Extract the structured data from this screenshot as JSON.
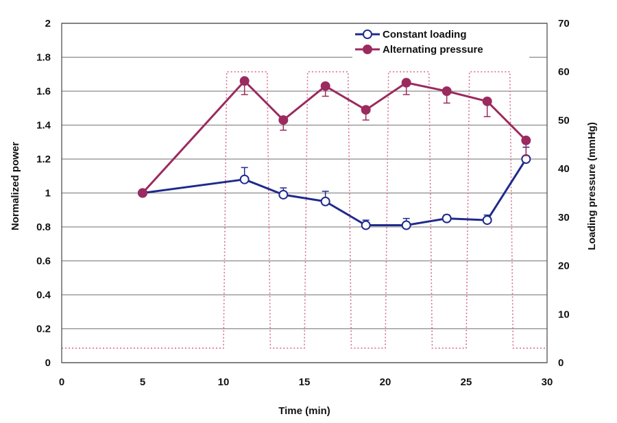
{
  "chart_data": {
    "type": "line",
    "xlabel": "Time (min)",
    "ylabel": "Normalized power",
    "y2label": "Loading pressure (mmHg)",
    "xlim": [
      0,
      30
    ],
    "ylim": [
      0,
      2
    ],
    "y2lim": [
      0,
      70
    ],
    "x_ticks": [
      "0",
      "5",
      "10",
      "15",
      "20",
      "25",
      "30"
    ],
    "y_ticks": [
      "0",
      "0.2",
      "0.4",
      "0.6",
      "0.8",
      "1",
      "1.2",
      "1.4",
      "1.6",
      "1.8",
      "2"
    ],
    "y2_ticks": [
      "0",
      "10",
      "20",
      "30",
      "40",
      "50",
      "60",
      "70"
    ],
    "grid": "horizontal",
    "legend_position": "top-right",
    "series": [
      {
        "name": "Constant loading",
        "color": "#1e2a8c",
        "marker": "open-circle",
        "x": [
          5,
          11.3,
          13.7,
          16.3,
          18.8,
          21.3,
          23.8,
          26.3,
          28.7
        ],
        "y": [
          1.0,
          1.08,
          0.99,
          0.95,
          0.81,
          0.81,
          0.85,
          0.84,
          1.2
        ],
        "err": [
          0,
          0.07,
          0.04,
          0.06,
          0.03,
          0.04,
          0.02,
          0.03,
          0.07
        ]
      },
      {
        "name": "Alternating pressure",
        "color": "#9b2a5f",
        "marker": "filled-circle",
        "x": [
          5,
          11.3,
          13.7,
          16.3,
          18.8,
          21.3,
          23.8,
          26.3,
          28.7
        ],
        "y": [
          1.0,
          1.66,
          1.43,
          1.63,
          1.49,
          1.65,
          1.6,
          1.54,
          1.31
        ],
        "err": [
          0,
          0.08,
          0.06,
          0.06,
          0.06,
          0.07,
          0.07,
          0.09,
          0.09
        ]
      }
    ],
    "pressure_profile": {
      "color": "#d66f8c",
      "style": "dotted",
      "axis": "right",
      "x": [
        0,
        10,
        10.2,
        12.7,
        12.9,
        15,
        15.2,
        17.7,
        17.9,
        20,
        20.2,
        22.7,
        22.9,
        25,
        25.2,
        27.7,
        27.9,
        30
      ],
      "y": [
        3,
        3,
        60,
        60,
        3,
        3,
        60,
        60,
        3,
        3,
        60,
        60,
        3,
        3,
        60,
        60,
        3,
        3
      ]
    }
  }
}
